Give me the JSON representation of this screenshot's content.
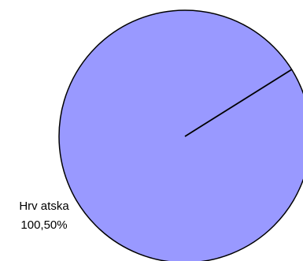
{
  "chart_data": {
    "type": "pie",
    "title": "",
    "slices": [
      {
        "label": "Hrv atska",
        "value": 100.5,
        "value_label": "100,50%"
      }
    ],
    "colors": {
      "slice_fill": "#9999ff",
      "outline": "#000000",
      "background": "#ffffff"
    },
    "legend": "none"
  }
}
